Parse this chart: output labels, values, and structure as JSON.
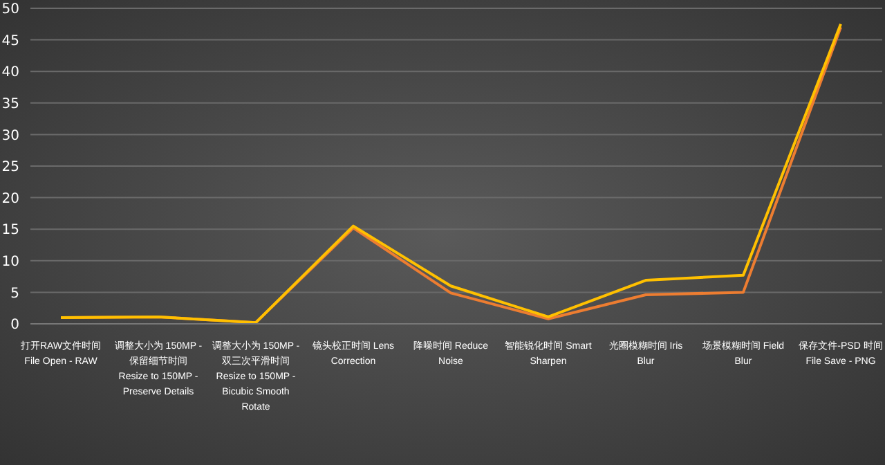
{
  "chart_data": {
    "type": "line",
    "categories": [
      "打开RAW文件时间\nFile Open - RAW",
      "调整大小为 150MP -\n保留细节时间\nResize to 150MP -\nPreserve Details",
      "调整大小为 150MP -\n双三次平滑时间\nResize to 150MP -\nBicubic Smooth\nRotate",
      "镜头校正时间 Lens\nCorrection",
      "降噪时间 Reduce\nNoise",
      "智能锐化时间 Smart\nSharpen",
      "光圈模糊时间 Iris\nBlur",
      "场景模糊时间 Field\nBlur",
      "保存文件-PSD 时间\nFile Save - PNG"
    ],
    "series": [
      {
        "color": "#ed7d31",
        "values": [
          1.0,
          1.1,
          0.2,
          15.2,
          4.9,
          0.8,
          4.6,
          5.0,
          47.0
        ]
      },
      {
        "color": "#ffc000",
        "values": [
          1.0,
          1.1,
          0.2,
          15.5,
          6.0,
          1.1,
          6.9,
          7.7,
          47.5
        ]
      }
    ],
    "ylim": [
      0,
      50
    ],
    "yticks": [
      0,
      5,
      10,
      15,
      20,
      25,
      30,
      35,
      40,
      45,
      50
    ],
    "grid": "y",
    "marker": "none",
    "line_style": "solid"
  }
}
